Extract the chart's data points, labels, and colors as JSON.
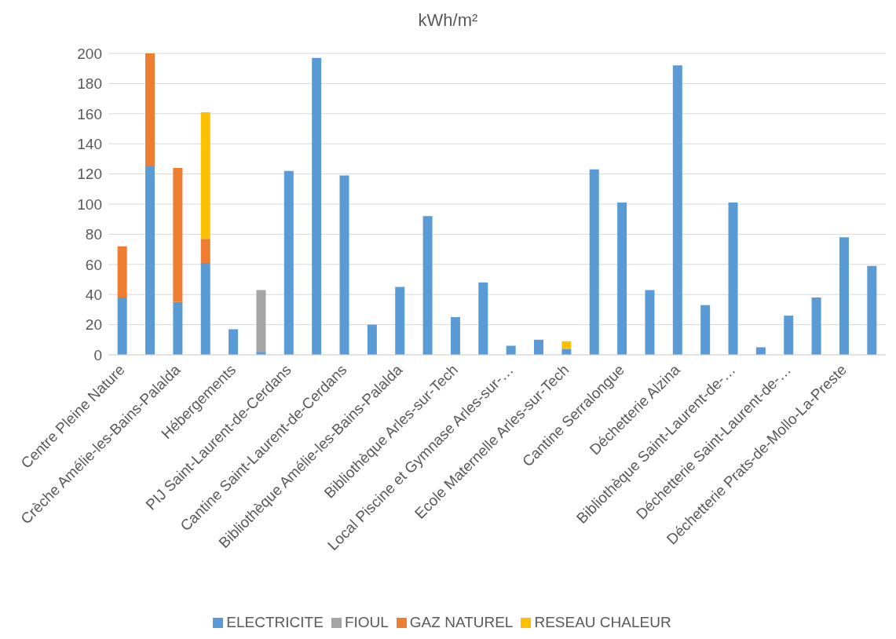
{
  "chart_data": {
    "type": "bar",
    "title": "kWh/m²",
    "stacked": true,
    "grid": "y",
    "legend": "bottom",
    "categories": [
      "Centre Pleine Nature",
      null,
      "Crèche Amélie-les-Bains-Palalda",
      null,
      "Hébergements",
      null,
      "PIJ Saint-Laurent-de-Cerdans",
      null,
      "Cantine Saint-Laurent-de-Cerdans",
      null,
      "Bibliothèque Amélie-les-Bains-Palalda",
      null,
      "Bibliothèque Arles-sur-Tech",
      null,
      "Local Piscine et Gymnase Arles-sur-…",
      null,
      "Ecole Maternelle Arles-sur-Tech",
      null,
      "Cantine Serralongue",
      null,
      "Déchetterie Alzina",
      null,
      "Bibliothèque  Saint-Laurent-de-…",
      null,
      "Déchetterie Saint-Laurent-de-…",
      null,
      "Déchetterie Prats-de-Mollo-La-Preste",
      null
    ],
    "ylim": [
      0,
      200
    ],
    "yticks": [
      0,
      20,
      40,
      60,
      80,
      100,
      120,
      140,
      160,
      180,
      200
    ],
    "series": [
      {
        "name": "ELECTRICITE",
        "color": "#5b9bd5",
        "values": [
          38,
          125,
          35,
          61,
          17,
          2,
          122,
          197,
          119,
          20,
          45,
          92,
          25,
          48,
          6,
          10,
          4,
          123,
          101,
          43,
          192,
          33,
          101,
          5,
          26,
          38,
          78,
          59
        ]
      },
      {
        "name": "GAZ NATUREL",
        "color": "#ed7d31",
        "values": [
          34,
          75,
          89,
          16,
          null,
          null,
          null,
          null,
          null,
          null,
          null,
          null,
          null,
          null,
          null,
          null,
          null,
          null,
          null,
          null,
          null,
          null,
          null,
          null,
          null,
          null,
          null,
          null
        ]
      },
      {
        "name": "FIOUL",
        "color": "#a5a5a5",
        "values": [
          null,
          null,
          null,
          null,
          null,
          41,
          null,
          null,
          null,
          null,
          null,
          null,
          null,
          null,
          null,
          null,
          null,
          null,
          null,
          null,
          null,
          null,
          null,
          null,
          null,
          null,
          null,
          null
        ]
      },
      {
        "name": "RESEAU CHALEUR",
        "color": "#ffc000",
        "values": [
          null,
          null,
          null,
          84,
          null,
          null,
          null,
          null,
          null,
          null,
          null,
          null,
          null,
          null,
          null,
          null,
          5,
          null,
          null,
          null,
          null,
          null,
          null,
          null,
          null,
          null,
          null,
          null
        ]
      }
    ]
  }
}
